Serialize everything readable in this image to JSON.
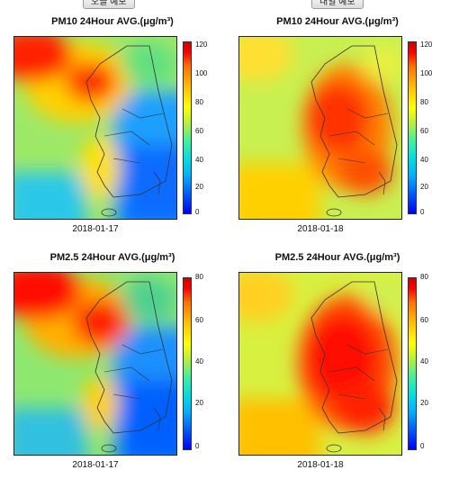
{
  "tabs": [
    {
      "label": "오늘 예보"
    },
    {
      "label": "내일 예보"
    }
  ],
  "panels": [
    {
      "title": "PM10 24Hour AVG.(μg/m³)",
      "date": "2018-01-17",
      "ticks": [
        "120",
        "100",
        "80",
        "60",
        "40",
        "20",
        "0"
      ],
      "level": "medium"
    },
    {
      "title": "PM10 24Hour AVG.(μg/m³)",
      "date": "2018-01-18",
      "ticks": [
        "120",
        "100",
        "80",
        "60",
        "40",
        "20",
        "0"
      ],
      "level": "high"
    },
    {
      "title": "PM2.5 24Hour AVG.(μg/m³)",
      "date": "2018-01-17",
      "ticks": [
        "80",
        "60",
        "40",
        "20",
        "0"
      ],
      "level": "medium"
    },
    {
      "title": "PM2.5 24Hour AVG.(μg/m³)",
      "date": "2018-01-18",
      "ticks": [
        "80",
        "60",
        "40",
        "20",
        "0"
      ],
      "level": "high"
    }
  ],
  "colors": {
    "low": "#1e90ff",
    "mid": "#7cf060",
    "high": "#ff2000"
  }
}
